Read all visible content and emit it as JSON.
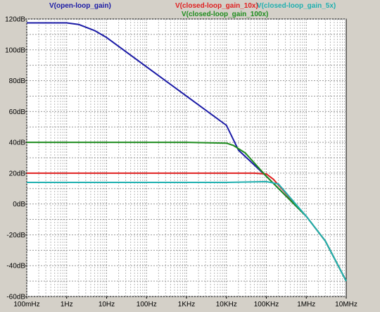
{
  "chart_data": {
    "type": "line",
    "x_scale": "log",
    "xlim": [
      "100mHz",
      "10MHz"
    ],
    "ylim": [
      -60,
      120
    ],
    "grid": true,
    "x_ticks": [
      "100mHz",
      "1Hz",
      "10Hz",
      "100Hz",
      "1KHz",
      "10KHz",
      "100KHz",
      "1MHz",
      "10MHz"
    ],
    "y_ticks": [
      "120dB",
      "100dB",
      "80dB",
      "60dB",
      "40dB",
      "20dB",
      "0dB",
      "-20dB",
      "-40dB",
      "-60dB"
    ],
    "series": [
      {
        "name": "V(open-loop_gain)",
        "color": "#1a1aa6",
        "x": [
          "100mHz",
          "1Hz",
          "2Hz",
          "5Hz",
          "10Hz",
          "100Hz",
          "1KHz",
          "10KHz",
          "20KHz",
          "100KHz",
          "1MHz",
          "3MHz",
          "10MHz"
        ],
        "y": [
          117.5,
          117.5,
          116.5,
          112.5,
          108,
          89,
          70,
          51,
          35,
          18,
          -8,
          -24,
          -50
        ]
      },
      {
        "name": "V(closed-loop_gain_10x)",
        "color": "#e02020",
        "x": [
          "100mHz",
          "1Hz",
          "10Hz",
          "100Hz",
          "1KHz",
          "10KHz",
          "50KHz",
          "100KHz",
          "150KHz",
          "1MHz",
          "3MHz",
          "10MHz"
        ],
        "y": [
          20,
          20,
          20,
          20,
          20,
          20,
          20,
          19.5,
          16,
          -8,
          -24,
          -50
        ]
      },
      {
        "name": "V(closed-loop_gain_100x)",
        "color": "#1e8c1e",
        "x": [
          "100mHz",
          "1Hz",
          "10Hz",
          "100Hz",
          "1KHz",
          "10KHz",
          "15KHz",
          "30KHz",
          "100KHz",
          "1MHz",
          "3MHz",
          "10MHz"
        ],
        "y": [
          40,
          40,
          40,
          40,
          40,
          39.5,
          38,
          33,
          18,
          -8,
          -24,
          -50
        ]
      },
      {
        "name": "V(closed-loop_gain_5x)",
        "color": "#20b0b0",
        "x": [
          "100mHz",
          "1Hz",
          "10Hz",
          "100Hz",
          "1KHz",
          "10KHz",
          "100KHz",
          "200KHz",
          "1MHz",
          "3MHz",
          "10MHz"
        ],
        "y": [
          14,
          14,
          14,
          14,
          14,
          14,
          14.5,
          13,
          -8,
          -24,
          -50
        ]
      }
    ]
  }
}
